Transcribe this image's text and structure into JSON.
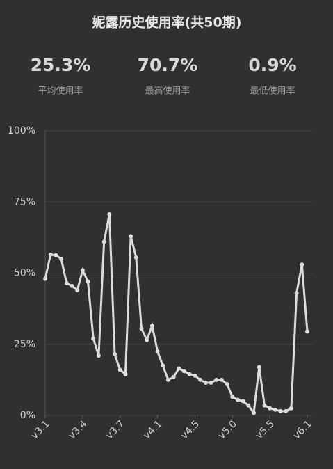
{
  "chart_data": {
    "type": "line",
    "title": "妮露历史使用率(共50期)",
    "stats": [
      {
        "value": "25.3%",
        "label": "平均使用率"
      },
      {
        "value": "70.7%",
        "label": "最高使用率"
      },
      {
        "value": "0.9%",
        "label": "最低使用率"
      }
    ],
    "categories": [
      "v3.1",
      null,
      null,
      null,
      null,
      null,
      null,
      "v3.4",
      null,
      null,
      null,
      null,
      null,
      null,
      "v3.7",
      null,
      null,
      null,
      null,
      null,
      null,
      "v4.1",
      null,
      null,
      null,
      null,
      null,
      null,
      "v4.5",
      null,
      null,
      null,
      null,
      null,
      null,
      "v5.0",
      null,
      null,
      null,
      null,
      null,
      null,
      "v5.5",
      null,
      null,
      null,
      null,
      null,
      null,
      "v6.1"
    ],
    "values": [
      48,
      56.5,
      56.3,
      55,
      46.5,
      45.5,
      44,
      51,
      47,
      27,
      21,
      61,
      70.7,
      21.5,
      16,
      14.5,
      63,
      55.5,
      30.5,
      26.5,
      31.5,
      22.5,
      17.5,
      12.5,
      13.5,
      16.5,
      15.5,
      14.5,
      14,
      12.5,
      11.5,
      11.5,
      12.5,
      12.5,
      11,
      6.5,
      5.5,
      5,
      3.5,
      0.9,
      17,
      3.5,
      2.5,
      2,
      1.5,
      1.5,
      2.5,
      43,
      53,
      29.5
    ],
    "color": "#dcdcdc",
    "ylim": [
      0,
      100
    ],
    "yticks": [
      {
        "value": 0,
        "label": "0%"
      },
      {
        "value": 25,
        "label": "25%"
      },
      {
        "value": 50,
        "label": "50%"
      },
      {
        "value": 75,
        "label": "75%"
      },
      {
        "value": 100,
        "label": "100%"
      }
    ],
    "grid": true
  }
}
